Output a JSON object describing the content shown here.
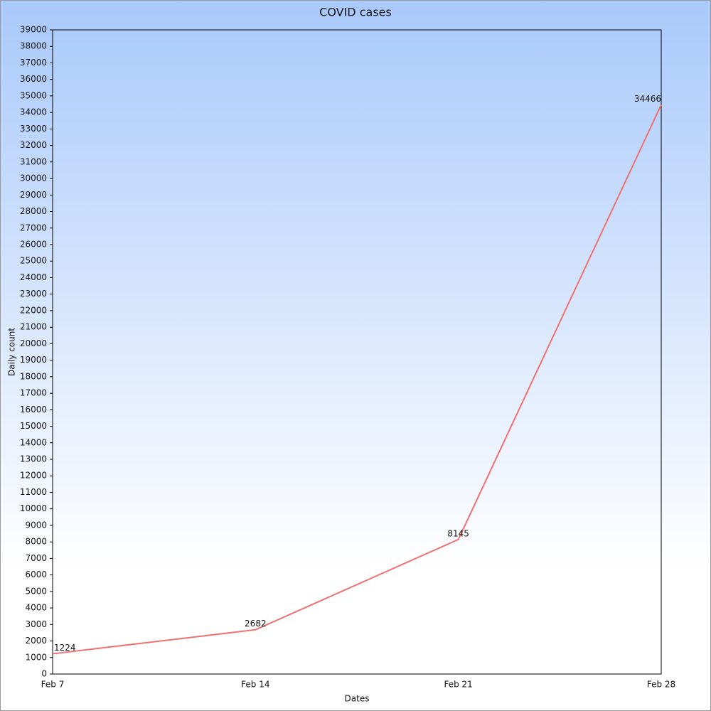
{
  "chart_data": {
    "type": "line",
    "title": "COVID cases",
    "x_label": "Dates",
    "y_label": "Daily count",
    "categories": [
      "Feb 7",
      "Feb 14",
      "Feb 21",
      "Feb 28"
    ],
    "series": [
      {
        "name": "Daily count",
        "color": "#f07070",
        "values": [
          1224,
          2682,
          8145,
          34466
        ]
      }
    ],
    "ylim": [
      0,
      39000
    ],
    "yticks": [
      0,
      1000,
      2000,
      3000,
      4000,
      5000,
      6000,
      7000,
      8000,
      9000,
      10000,
      11000,
      12000,
      13000,
      14000,
      15000,
      16000,
      17000,
      18000,
      19000,
      20000,
      21000,
      22000,
      23000,
      24000,
      25000,
      26000,
      27000,
      28000,
      29000,
      30000,
      31000,
      32000,
      33000,
      34000,
      35000,
      36000,
      37000,
      38000,
      39000
    ],
    "grid": false
  }
}
